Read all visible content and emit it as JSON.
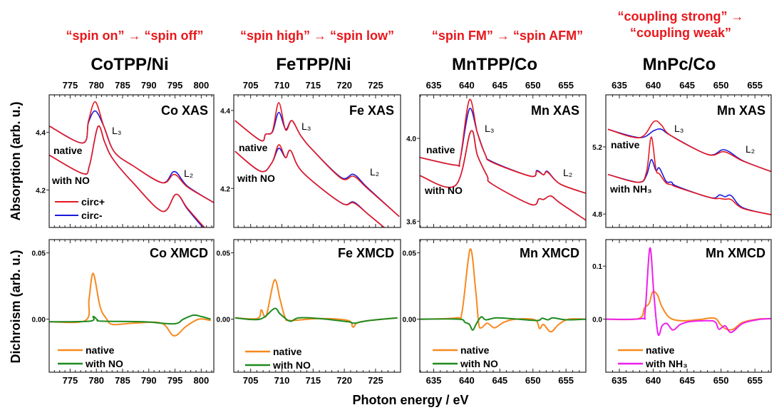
{
  "annotations": [
    [
      "“spin on” → “spin off”"
    ],
    [
      "“spin high” → “spin low”"
    ],
    [
      "“spin FM” → “spin AFM”"
    ],
    [
      "“coupling strong”  →",
      "“coupling weak”"
    ]
  ],
  "titles": [
    "CoTPP/Ni",
    "FeTPP/Ni",
    "MnTPP/Co",
    "MnPc/Co"
  ],
  "axis_labels": {
    "y_top": "Absorption (arb. u.)",
    "y_bottom": "Dichroism (arb. u.)",
    "x": "Photon energy / eV"
  },
  "colors": {
    "annotation": "#e8171c",
    "circ_plus": "#e8181f",
    "circ_minus": "#1a1adb",
    "native": "#f7891e",
    "with_NO": "#1f8a1f",
    "with_NH3": "#ee1fee"
  },
  "chart_data": [
    {
      "type": "line",
      "panel_label": "Co XAS",
      "xaxis_position": "top",
      "xlim": [
        771,
        802.4
      ],
      "ylim": [
        4.07,
        4.53
      ],
      "xticks": [
        775,
        780,
        785,
        790,
        795,
        800
      ],
      "yticks": [
        4.2,
        4.4
      ],
      "yticklabels": [
        "4.2",
        "4.4"
      ],
      "peak_labels": [
        "L₃",
        "L₂"
      ],
      "legend": [
        "circ+",
        "circ-"
      ],
      "spectra": [
        {
          "label": "native",
          "x": [
            771.0,
            777.4,
            778.5,
            779.8,
            781.4,
            783.4,
            787.0,
            792.6,
            794.9,
            797.4,
            802.4
          ],
          "circ_plus": [
            4.422,
            4.363,
            4.44,
            4.506,
            4.422,
            4.333,
            4.284,
            4.225,
            4.254,
            4.21,
            4.156
          ],
          "circ_minus": [
            4.422,
            4.363,
            4.435,
            4.474,
            4.422,
            4.333,
            4.284,
            4.225,
            4.264,
            4.213,
            4.156
          ]
        },
        {
          "label": "with NO",
          "x": [
            771.0,
            777.4,
            778.7,
            780.3,
            781.6,
            783.1,
            787.0,
            792.6,
            795.2,
            797.4,
            800.7,
            802.4
          ],
          "circ_plus": [
            4.321,
            4.257,
            4.286,
            4.42,
            4.365,
            4.309,
            4.225,
            4.126,
            4.185,
            4.136,
            4.069,
            4.05
          ],
          "circ_minus": [
            4.321,
            4.257,
            4.286,
            4.42,
            4.365,
            4.309,
            4.225,
            4.126,
            4.185,
            4.133,
            4.063,
            4.045
          ]
        }
      ]
    },
    {
      "type": "line",
      "panel_label": "Fe XAS",
      "xaxis_position": "top",
      "xlim": [
        702.3,
        729
      ],
      "ylim": [
        4.1,
        4.44
      ],
      "xticks": [
        705,
        710,
        715,
        720,
        725
      ],
      "yticks": [
        4.2,
        4.4
      ],
      "yticklabels": [
        "4.2",
        "4.4"
      ],
      "peak_labels": [
        "L₃",
        "L₂"
      ],
      "spectra": [
        {
          "label": "native",
          "x": [
            702.5,
            706.6,
            707.4,
            708.5,
            709.5,
            710.6,
            711.6,
            713.0,
            714.9,
            719.5,
            721.5,
            723.7,
            728.8
          ],
          "circ_plus": [
            4.374,
            4.323,
            4.339,
            4.347,
            4.42,
            4.35,
            4.374,
            4.336,
            4.299,
            4.226,
            4.231,
            4.2,
            4.128
          ],
          "circ_minus": [
            4.374,
            4.323,
            4.339,
            4.345,
            4.395,
            4.352,
            4.374,
            4.336,
            4.299,
            4.228,
            4.236,
            4.202,
            4.128
          ]
        },
        {
          "label": "with NO",
          "x": [
            702.5,
            706.6,
            708.4,
            709.5,
            710.6,
            711.4,
            713.3,
            719.5,
            721.5,
            723.8,
            727.7,
            729.0
          ],
          "circ_plus": [
            4.295,
            4.244,
            4.266,
            4.312,
            4.279,
            4.297,
            4.242,
            4.163,
            4.163,
            4.134,
            4.083,
            4.07
          ],
          "circ_minus": [
            4.295,
            4.244,
            4.266,
            4.303,
            4.279,
            4.297,
            4.242,
            4.163,
            4.165,
            4.134,
            4.083,
            4.07
          ]
        }
      ]
    },
    {
      "type": "line",
      "panel_label": "Mn XAS",
      "xaxis_position": "top",
      "xlim": [
        632.9,
        658
      ],
      "ylim": [
        3.57,
        4.21
      ],
      "xticks": [
        635,
        640,
        645,
        650,
        655
      ],
      "yticks": [
        3.6,
        4.0
      ],
      "yticklabels": [
        "3.6",
        "4.0"
      ],
      "peak_labels": [
        "L₃",
        "L₂"
      ],
      "spectra": [
        {
          "label": "native",
          "x": [
            632.9,
            638.3,
            639.0,
            640.4,
            641.6,
            642.8,
            643.8,
            649.7,
            650.6,
            651.6,
            652.2,
            654.1,
            658.0
          ],
          "circ_plus": [
            3.908,
            3.871,
            3.898,
            4.186,
            4.027,
            3.922,
            3.885,
            3.817,
            3.841,
            3.824,
            3.837,
            3.78,
            3.735
          ],
          "circ_minus": [
            3.908,
            3.871,
            3.898,
            4.142,
            4.027,
            3.922,
            3.888,
            3.817,
            3.845,
            3.824,
            3.84,
            3.78,
            3.735
          ]
        },
        {
          "label": "with NO",
          "x": [
            632.9,
            638.3,
            640.6,
            641.6,
            643.1,
            643.8,
            649.7,
            650.9,
            651.6,
            652.7,
            654.1,
            658.0
          ],
          "circ_plus": [
            3.82,
            3.773,
            4.034,
            3.919,
            3.817,
            3.78,
            3.681,
            3.708,
            3.705,
            3.722,
            3.688,
            3.605
          ],
          "circ_minus": [
            3.82,
            3.773,
            4.034,
            3.919,
            3.817,
            3.78,
            3.681,
            3.708,
            3.705,
            3.722,
            3.688,
            3.605
          ]
        }
      ]
    },
    {
      "type": "line",
      "panel_label": "Mn XAS",
      "xaxis_position": "top",
      "xlim": [
        633.0,
        657.4
      ],
      "ylim": [
        4.72,
        5.51
      ],
      "xticks": [
        635,
        640,
        645,
        650,
        655
      ],
      "yticks": [
        4.8,
        5.2
      ],
      "yticklabels": [
        "4.8",
        "5.2"
      ],
      "peak_labels": [
        "L₃",
        "L₂"
      ],
      "spectra": [
        {
          "label": "native",
          "x": [
            633.3,
            638.0,
            640.1,
            641.2,
            642.6,
            648.1,
            650.5,
            653.2,
            657.4
          ],
          "circ_plus": [
            5.305,
            5.255,
            5.351,
            5.33,
            5.267,
            5.154,
            5.171,
            5.116,
            5.053
          ],
          "circ_minus": [
            5.305,
            5.255,
            5.297,
            5.305,
            5.267,
            5.154,
            5.183,
            5.118,
            5.053
          ]
        },
        {
          "label": "with NH₃",
          "x": [
            633.3,
            637.8,
            639.0,
            639.7,
            640.4,
            640.9,
            641.9,
            642.7,
            643.5,
            648.5,
            649.8,
            650.6,
            651.5,
            653.2,
            657.4
          ],
          "circ_plus": [
            5.036,
            4.989,
            5.05,
            5.259,
            5.065,
            5.04,
            4.985,
            4.975,
            4.96,
            4.897,
            4.893,
            4.888,
            4.886,
            4.834,
            4.796
          ],
          "circ_minus": [
            5.036,
            4.989,
            5.03,
            5.124,
            5.059,
            5.074,
            4.995,
            4.99,
            4.965,
            4.897,
            4.914,
            4.903,
            4.91,
            4.838,
            4.796
          ]
        }
      ]
    },
    {
      "type": "line",
      "panel_label": "Co XMCD",
      "xaxis_position": "bottom",
      "xlim": [
        771,
        802.4
      ],
      "ylim": [
        -0.04,
        0.06
      ],
      "xticks": [
        775,
        780,
        785,
        790,
        795,
        800
      ],
      "yticks": [
        0,
        0.05
      ],
      "yticklabels": [
        "0.00",
        "0.05"
      ],
      "series": [
        {
          "name": "native",
          "color": "#f7891e",
          "x": [
            771,
            777.9,
            778.6,
            779.4,
            780.7,
            781.9,
            783.1,
            787,
            792.4,
            794.8,
            797.1,
            799.5,
            801.8
          ],
          "y": [
            -0.002,
            -0.001,
            0.015,
            0.0345,
            0.0095,
            0.0005,
            -0.004,
            -0.003,
            -0.003,
            -0.0125,
            -0.0055,
            0,
            -0.001
          ]
        },
        {
          "name": "with NO",
          "color": "#1f8a1f",
          "x": [
            771,
            778.8,
            779.4,
            780.2,
            781,
            789,
            794.8,
            796.6,
            798.5,
            800,
            801.8
          ],
          "y": [
            -0.002,
            -0.0015,
            0.002,
            -0.0005,
            -0.0015,
            -0.002,
            -0.0035,
            0,
            0.003,
            0.002,
            0
          ]
        }
      ]
    },
    {
      "type": "line",
      "panel_label": "Fe XMCD",
      "xaxis_position": "bottom",
      "xlim": [
        702.3,
        729
      ],
      "ylim": [
        -0.04,
        0.06
      ],
      "xticks": [
        705,
        710,
        715,
        720,
        725
      ],
      "yticks": [
        0,
        0.05
      ],
      "yticklabels": [
        "0.00",
        "0.05"
      ],
      "series": [
        {
          "name": "native",
          "color": "#f7891e",
          "x": [
            702.5,
            706.1,
            706.7,
            707.5,
            708.8,
            709.7,
            710.5,
            711.3,
            716,
            720.6,
            721.4,
            722.6,
            728.5
          ],
          "y": [
            0.001,
            0.0005,
            0.007,
            0.0025,
            0.0295,
            0.015,
            0.0015,
            -0.001,
            0.0005,
            -0.001,
            -0.006,
            -0.002,
            0.001
          ]
        },
        {
          "name": "with NO",
          "color": "#1f8a1f",
          "x": [
            702.5,
            706.5,
            708.8,
            709.7,
            711.3,
            712.7,
            716,
            720.6,
            721.6,
            724,
            728.5
          ],
          "y": [
            0.001,
            0,
            0.008,
            0.004,
            -0.0015,
            0.001,
            0.0005,
            -0.002,
            -0.003,
            -0.001,
            0.001
          ]
        }
      ]
    },
    {
      "type": "line",
      "panel_label": "Mn XMCD",
      "xaxis_position": "bottom",
      "xlim": [
        632.9,
        658
      ],
      "ylim": [
        -0.04,
        0.06
      ],
      "xticks": [
        635,
        640,
        645,
        650,
        655
      ],
      "yticks": [
        0,
        0.05
      ],
      "yticklabels": [
        "0.00",
        "0.05"
      ],
      "series": [
        {
          "name": "native",
          "color": "#f7891e",
          "x": [
            632.9,
            638.4,
            639.3,
            640.5,
            641.3,
            641.8,
            642.2,
            643.1,
            644.2,
            645.6,
            647.4,
            650.3,
            651.0,
            651.6,
            652.7,
            653.9,
            655.4,
            658.0
          ],
          "y": [
            0,
            0.001,
            0.006,
            0.0527,
            0.024,
            -0.003,
            -0.0065,
            -0.003,
            -0.0065,
            -0.0023,
            0,
            -0.0005,
            -0.007,
            -0.004,
            -0.0095,
            -0.004,
            0,
            0
          ]
        },
        {
          "name": "with NO",
          "color": "#1f8a1f",
          "x": [
            632.9,
            638.8,
            639.7,
            640.4,
            640.9,
            641.5,
            642.2,
            642.9,
            644.5,
            647.7,
            650.7,
            651.4,
            652.3,
            653.0,
            655.0,
            658.0
          ],
          "y": [
            0,
            0,
            -0.0023,
            -0.004,
            -0.0082,
            -0.003,
            0.0018,
            -0.0005,
            0.001,
            0,
            -0.001,
            0.0007,
            -0.0005,
            0.001,
            -0.0005,
            0
          ]
        }
      ]
    },
    {
      "type": "line",
      "panel_label": "Mn XMCD",
      "xaxis_position": "bottom",
      "xlim": [
        633.0,
        657.4
      ],
      "ylim": [
        -0.1,
        0.15
      ],
      "xticks": [
        635,
        640,
        645,
        650,
        655
      ],
      "yticks": [
        0,
        0.1
      ],
      "yticklabels": [
        "0.0",
        "0.1"
      ],
      "series": [
        {
          "name": "native",
          "color": "#f7891e",
          "x": [
            633.0,
            637.8,
            638.7,
            639.4,
            639.9,
            640.6,
            641.3,
            642.4,
            644.1,
            646.6,
            649.0,
            649.9,
            650.8,
            651.8,
            653.2,
            655.4,
            657.4
          ],
          "y": [
            0,
            0.001,
            0.021,
            0.03,
            0.051,
            0.046,
            0.023,
            0.003,
            -0.003,
            -0.001,
            0.002,
            -0.01,
            -0.019,
            -0.019,
            -0.006,
            0,
            0.001
          ]
        },
        {
          "name": "with NH₃",
          "color": "#ee1fee",
          "x": [
            633.0,
            638.2,
            638.8,
            639.5,
            640.1,
            640.7,
            641.3,
            642.0,
            642.9,
            644.0,
            645.5,
            648.3,
            649.2,
            649.7,
            650.6,
            651.5,
            653.2,
            655.4,
            657.4
          ],
          "y": [
            0,
            0.001,
            0.014,
            0.134,
            0.046,
            -0.028,
            -0.0125,
            -0.008,
            -0.0205,
            -0.01,
            -0.0045,
            -0.003,
            -0.006,
            -0.019,
            -0.0125,
            -0.025,
            -0.008,
            -0.001,
            0.001
          ]
        }
      ]
    }
  ]
}
